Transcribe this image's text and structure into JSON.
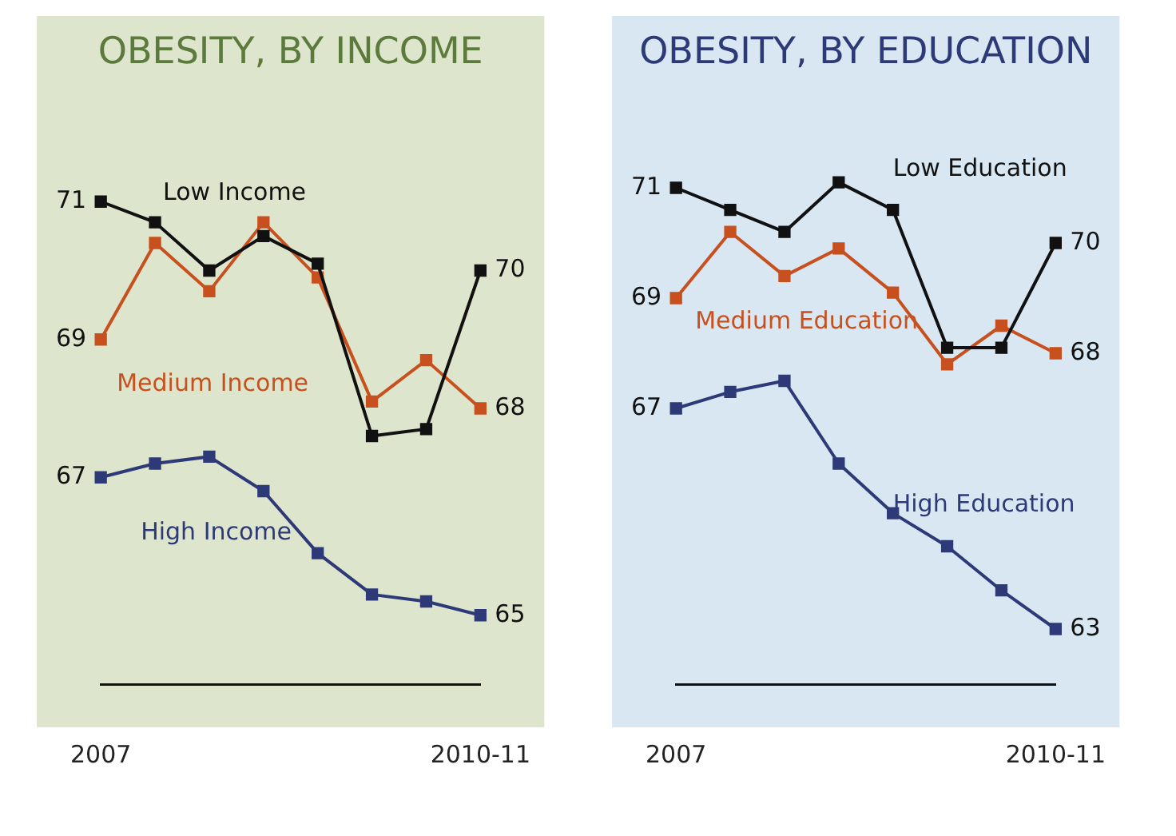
{
  "chart_data": [
    {
      "type": "line",
      "title": "OBESITY, BY INCOME",
      "categories": [
        "2007",
        null,
        null,
        null,
        null,
        null,
        null,
        "2010-11"
      ],
      "grid": false,
      "legend": false,
      "marker": "square",
      "line_style": "solid",
      "tick_labels": "x",
      "series": [
        {
          "name": "Low Income",
          "color": "#111111",
          "values": [
            71,
            70.7,
            70,
            70.5,
            70.1,
            67.6,
            67.7,
            70
          ],
          "value_labels": [
            "71",
            null,
            null,
            null,
            null,
            null,
            null,
            "70"
          ]
        },
        {
          "name": "Medium Income",
          "color": "#c8501e",
          "values": [
            69,
            70.4,
            69.7,
            70.7,
            69.9,
            68.1,
            68.7,
            68
          ],
          "value_labels": [
            "69",
            null,
            null,
            null,
            null,
            null,
            null,
            "68"
          ]
        },
        {
          "name": "High Income",
          "color": "#2e3a78",
          "values": [
            67,
            67.2,
            67.3,
            66.8,
            65.9,
            65.3,
            65.2,
            65
          ],
          "value_labels": [
            "67",
            null,
            null,
            null,
            null,
            null,
            null,
            "65"
          ]
        }
      ]
    },
    {
      "type": "line",
      "title": "OBESITY, BY EDUCATION",
      "categories": [
        "2007",
        null,
        null,
        null,
        null,
        null,
        null,
        "2010-11"
      ],
      "grid": false,
      "legend": false,
      "marker": "square",
      "line_style": "solid",
      "tick_labels": "x",
      "series": [
        {
          "name": "Low Education",
          "color": "#111111",
          "values": [
            71,
            70.6,
            70.2,
            71.1,
            70.6,
            68.1,
            68.1,
            70
          ],
          "value_labels": [
            "71",
            null,
            null,
            null,
            null,
            null,
            null,
            "70"
          ]
        },
        {
          "name": "Medium Education",
          "color": "#c8501e",
          "values": [
            69,
            70.2,
            69.4,
            69.9,
            69.1,
            67.8,
            68.5,
            68
          ],
          "value_labels": [
            "69",
            null,
            null,
            null,
            null,
            null,
            null,
            "68"
          ]
        },
        {
          "name": "High Education",
          "color": "#2e3a78",
          "values": [
            67,
            67.3,
            67.5,
            66,
            65.1,
            64.5,
            63.7,
            63
          ],
          "value_labels": [
            "67",
            null,
            null,
            null,
            null,
            null,
            null,
            "63"
          ]
        }
      ]
    }
  ]
}
